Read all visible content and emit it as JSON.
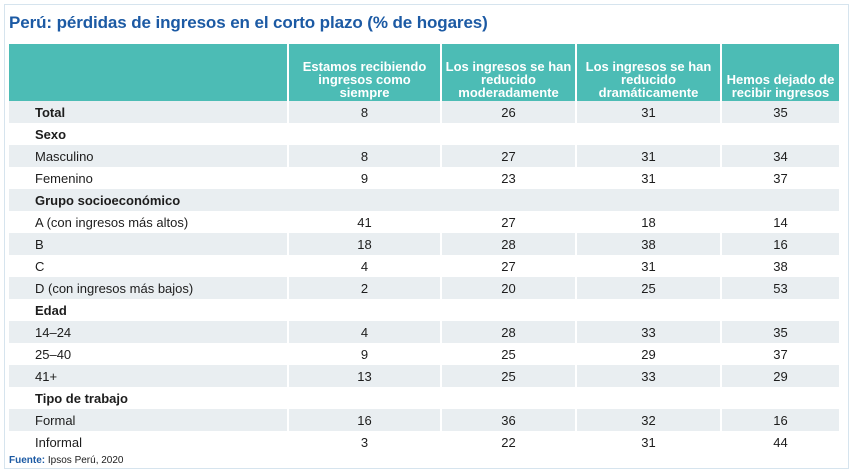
{
  "title": "Perú: pérdidas de ingresos en el corto plazo (% de hogares)",
  "columns": [
    "Estamos recibiendo ingresos como siempre",
    "Los ingresos se han reducido moderadamente",
    "Los ingresos se han reducido dramáticamente",
    "Hemos dejado de recibir ingresos"
  ],
  "rows": {
    "total": {
      "label": "Total",
      "v": [
        "8",
        "26",
        "31",
        "35"
      ]
    },
    "sexo": "Sexo",
    "masculino": {
      "label": "Masculino",
      "v": [
        "8",
        "27",
        "31",
        "34"
      ]
    },
    "femenino": {
      "label": "Femenino",
      "v": [
        "9",
        "23",
        "31",
        "37"
      ]
    },
    "grupo": "Grupo socioeconómico",
    "a": {
      "label": "A (con ingresos más altos)",
      "v": [
        "41",
        "27",
        "18",
        "14"
      ]
    },
    "b": {
      "label": "B",
      "v": [
        "18",
        "28",
        "38",
        "16"
      ]
    },
    "c": {
      "label": "C",
      "v": [
        "4",
        "27",
        "31",
        "38"
      ]
    },
    "d": {
      "label": "D (con ingresos más bajos)",
      "v": [
        "2",
        "20",
        "25",
        "53"
      ]
    },
    "edad": "Edad",
    "e1": {
      "label": "14–24",
      "v": [
        "4",
        "28",
        "33",
        "35"
      ]
    },
    "e2": {
      "label": "25–40",
      "v": [
        "9",
        "25",
        "29",
        "37"
      ]
    },
    "e3": {
      "label": "41+",
      "v": [
        "13",
        "25",
        "33",
        "29"
      ]
    },
    "tipo": "Tipo de trabajo",
    "formal": {
      "label": "Formal",
      "v": [
        "16",
        "36",
        "32",
        "16"
      ]
    },
    "informal": {
      "label": "Informal",
      "v": [
        "3",
        "22",
        "31",
        "44"
      ]
    }
  },
  "source": {
    "label": "Fuente:",
    "text": "Ipsos Perú, 2020"
  },
  "colors": {
    "title": "#1c5aa4",
    "header_bg": "#4cbcb5",
    "row_shade": "#e9eef1"
  }
}
